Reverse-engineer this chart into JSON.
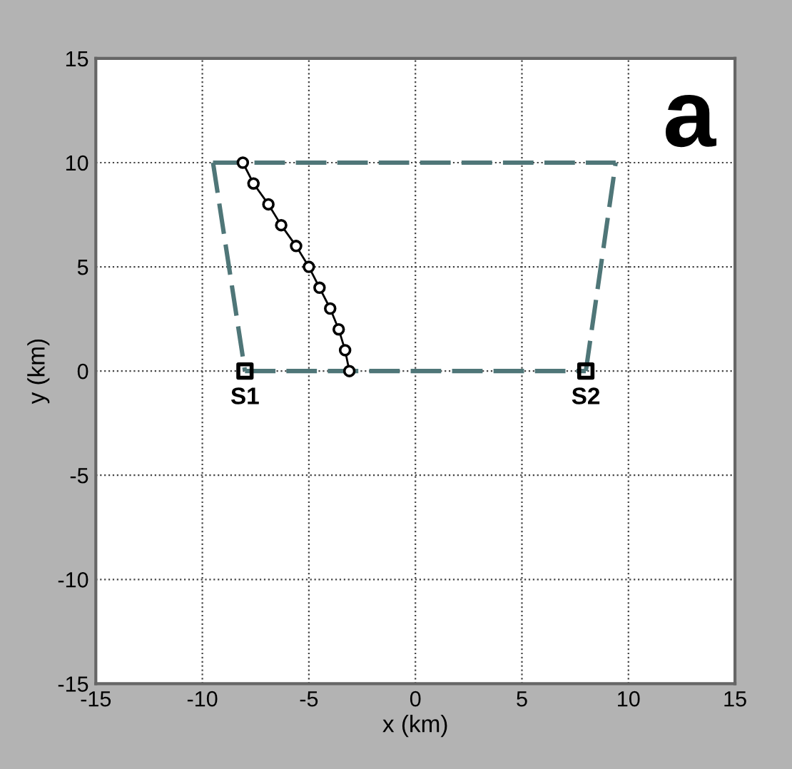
{
  "chart_data": {
    "type": "line",
    "xlabel": "x (km)",
    "ylabel": "y (km)",
    "xlim": [
      -15,
      15
    ],
    "ylim": [
      -15,
      15
    ],
    "xticks": [
      -15,
      -10,
      -5,
      0,
      5,
      10,
      15
    ],
    "yticks": [
      -15,
      -10,
      -5,
      0,
      5,
      10,
      15
    ],
    "grid": true,
    "series": [
      {
        "color": "#4f7678",
        "line_style": "dashed",
        "marker": "none",
        "x": [
          -9.5,
          9.4
        ],
        "values": [
          10,
          10
        ]
      },
      {
        "color": "#4f7678",
        "line_style": "dashed",
        "marker": "none",
        "x": [
          8,
          9.4
        ],
        "values": [
          0,
          10
        ]
      },
      {
        "color": "#4f7678",
        "line_style": "dashed",
        "marker": "none",
        "x": [
          -8,
          8
        ],
        "values": [
          0,
          0
        ]
      },
      {
        "color": "#4f7678",
        "line_style": "dashed",
        "marker": "none",
        "x": [
          -9.5,
          -8
        ],
        "values": [
          10,
          0
        ]
      },
      {
        "color": "#000000",
        "line_style": "solid",
        "marker": "circle",
        "x": [
          -8.1,
          -7.6,
          -6.9,
          -6.3,
          -5.6,
          -5.0,
          -4.5,
          -4.0,
          -3.6,
          -3.3,
          -3.1
        ],
        "values": [
          10,
          9,
          8,
          7,
          6,
          5,
          4,
          3,
          2,
          1,
          0
        ]
      },
      {
        "type": "scatter",
        "color": "#000000",
        "marker": "square",
        "x": [
          -8,
          8
        ],
        "values": [
          0,
          0
        ]
      }
    ],
    "annotations": [
      {
        "text": "S1",
        "x": -8,
        "y": 0
      },
      {
        "text": "S2",
        "x": 8,
        "y": 0
      },
      "a"
    ]
  }
}
